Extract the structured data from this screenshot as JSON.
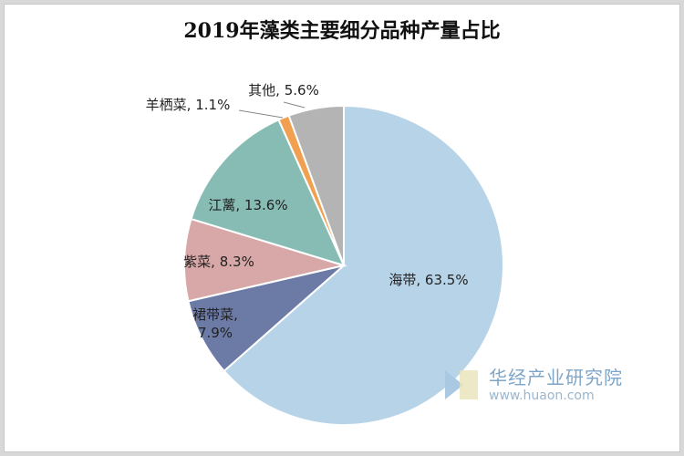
{
  "chart_data": {
    "type": "pie",
    "title": "2019年藻类主要细分品种产量占比",
    "slices": [
      {
        "name": "海带",
        "value": 63.5,
        "label": "海带, 63.5%",
        "color": "#b7d3e8"
      },
      {
        "name": "裙带菜",
        "value": 7.9,
        "label": "裙带菜,|7.9%",
        "color": "#6c7aa6"
      },
      {
        "name": "紫菜",
        "value": 8.3,
        "label": "紫菜, 8.3%",
        "color": "#d8a8a8"
      },
      {
        "name": "江蓠",
        "value": 13.6,
        "label": "江蓠, 13.6%",
        "color": "#86bcb4"
      },
      {
        "name": "羊栖菜",
        "value": 1.1,
        "label": "羊栖菜, 1.1%",
        "color": "#f0a050"
      },
      {
        "name": "其他",
        "value": 5.6,
        "label": "其他, 5.6%",
        "color": "#b4b4b4"
      }
    ],
    "start_angle_deg": 0,
    "direction": "clockwise"
  },
  "watermark": {
    "name": "华经产业研究院",
    "url": "www.huaon.com"
  }
}
